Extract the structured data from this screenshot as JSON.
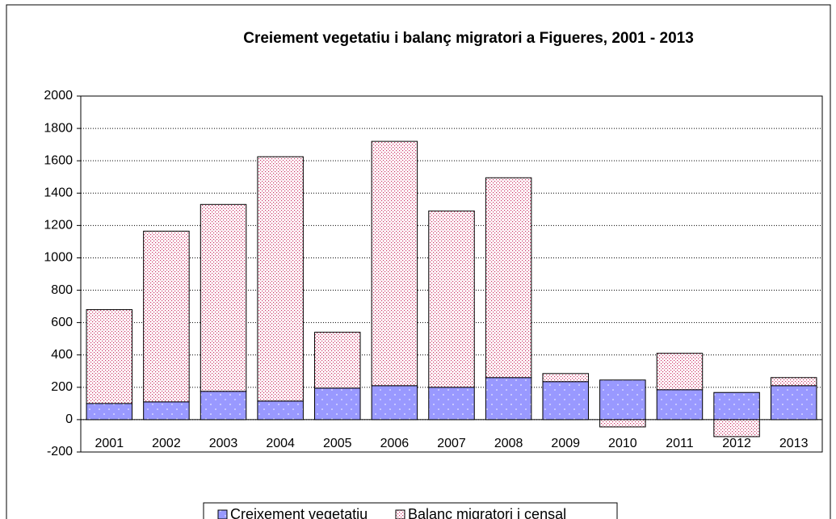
{
  "chart_data": {
    "type": "stacked_bar",
    "title": "Creiement  vegetatiu i balanç migratori a Figueres, 2001 - 2013",
    "categories": [
      "2001",
      "2002",
      "2003",
      "2004",
      "2005",
      "2006",
      "2007",
      "2008",
      "2009",
      "2010",
      "2011",
      "2012",
      "2013"
    ],
    "series": [
      {
        "name": "Creixement vegetatiu",
        "color": "#9999ff",
        "values": [
          100,
          110,
          175,
          115,
          195,
          210,
          200,
          260,
          235,
          245,
          185,
          168,
          210
        ]
      },
      {
        "name": "Balanç migratori i censal",
        "color": "#cc3366",
        "values": [
          580,
          1055,
          1155,
          1510,
          345,
          1510,
          1090,
          1235,
          50,
          -45,
          225,
          -105,
          50
        ]
      }
    ],
    "ylim": [
      -200,
      2000
    ],
    "yticks": [
      -200,
      0,
      200,
      400,
      600,
      800,
      1000,
      1200,
      1400,
      1600,
      1800,
      2000
    ],
    "grid": true
  }
}
